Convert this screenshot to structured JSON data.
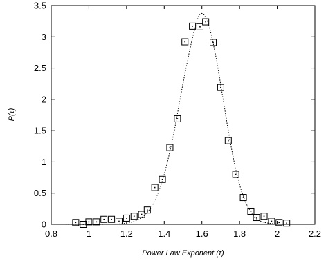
{
  "chart_data": {
    "type": "scatter",
    "title": "",
    "xlabel": "Power Law Exponent (τ)",
    "ylabel": "P(τ)",
    "xlim": [
      0.8,
      2.2
    ],
    "ylim": [
      0,
      3.5
    ],
    "x_ticks": [
      "0.8",
      "1",
      "1.2",
      "1.4",
      "1.6",
      "1.8",
      "2",
      "2.2"
    ],
    "y_ticks": [
      "0",
      "0.5",
      "1",
      "1.5",
      "2",
      "2.5",
      "3",
      "3.5"
    ],
    "grid": false,
    "legend": "none",
    "series": [
      {
        "kind": "points",
        "marker": "open-square",
        "x": [
          0.93,
          0.97,
          1.0,
          1.04,
          1.08,
          1.12,
          1.16,
          1.2,
          1.24,
          1.28,
          1.31,
          1.35,
          1.39,
          1.43,
          1.47,
          1.51,
          1.55,
          1.59,
          1.62,
          1.66,
          1.7,
          1.74,
          1.78,
          1.82,
          1.86,
          1.89,
          1.93,
          1.97,
          2.01,
          2.05
        ],
        "y": [
          0.03,
          0.0,
          0.04,
          0.04,
          0.08,
          0.08,
          0.05,
          0.1,
          0.13,
          0.16,
          0.23,
          0.59,
          0.72,
          1.23,
          1.69,
          2.92,
          3.17,
          3.16,
          3.24,
          2.91,
          2.19,
          1.34,
          0.8,
          0.43,
          0.21,
          0.11,
          0.13,
          0.05,
          0.03,
          0.02
        ]
      },
      {
        "kind": "fit-curve",
        "style": "dotted",
        "x": [
          0.8,
          1.1,
          1.2,
          1.25,
          1.3,
          1.35,
          1.4,
          1.45,
          1.5,
          1.55,
          1.59,
          1.63,
          1.67,
          1.71,
          1.75,
          1.79,
          1.83,
          1.87,
          1.9,
          1.95,
          2.05
        ],
        "y": [
          0.0,
          0.0,
          0.02,
          0.06,
          0.16,
          0.38,
          0.8,
          1.45,
          2.26,
          2.98,
          3.36,
          3.24,
          2.75,
          2.05,
          1.33,
          0.75,
          0.37,
          0.16,
          0.07,
          0.02,
          0.0
        ]
      }
    ]
  }
}
